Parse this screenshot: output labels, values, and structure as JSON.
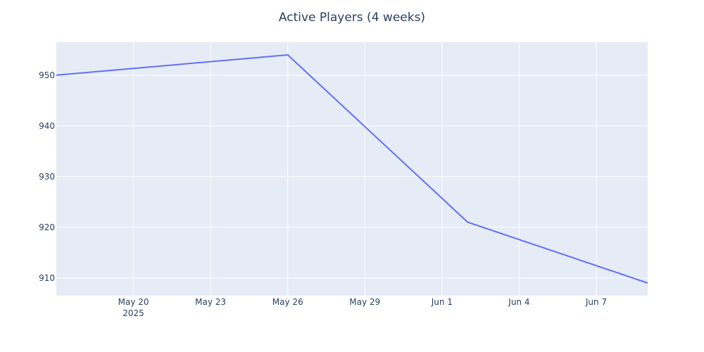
{
  "chart_data": {
    "type": "line",
    "title": "Active Players (4 weeks)",
    "xlabel": "",
    "ylabel": "",
    "x_range": [
      "2025-05-17",
      "2025-06-09"
    ],
    "ylim": [
      906.5,
      956.5
    ],
    "x_ticks": [
      {
        "date": "2025-05-20",
        "label": "May 20",
        "sublabel": "2025"
      },
      {
        "date": "2025-05-23",
        "label": "May 23"
      },
      {
        "date": "2025-05-26",
        "label": "May 26"
      },
      {
        "date": "2025-05-29",
        "label": "May 29"
      },
      {
        "date": "2025-06-01",
        "label": "Jun 1"
      },
      {
        "date": "2025-06-04",
        "label": "Jun 4"
      },
      {
        "date": "2025-06-07",
        "label": "Jun 7"
      }
    ],
    "y_ticks": [
      910,
      920,
      930,
      940,
      950
    ],
    "grid": true,
    "background": "#e5ecf6",
    "grid_color": "#ffffff",
    "series": [
      {
        "color": "#636efa",
        "points": [
          {
            "x": "2025-05-17",
            "y": 950
          },
          {
            "x": "2025-05-26",
            "y": 954
          },
          {
            "x": "2025-06-02",
            "y": 921
          },
          {
            "x": "2025-06-09",
            "y": 909
          }
        ]
      }
    ]
  }
}
